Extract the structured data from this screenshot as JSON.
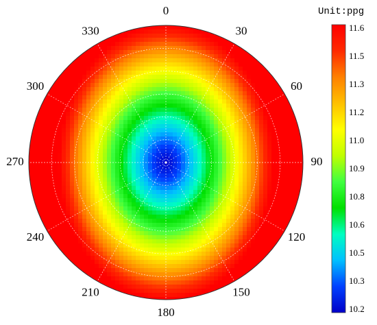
{
  "chart_data": {
    "type": "heatmap",
    "subtype": "polar",
    "unit_label": "Unit:ppg",
    "angular_axis": {
      "direction": "clockwise",
      "zero_location": "top",
      "tick_labels": [
        "0",
        "30",
        "60",
        "90",
        "120",
        "150",
        "180",
        "210",
        "240",
        "270",
        "300",
        "330"
      ],
      "tick_values": [
        0,
        30,
        60,
        90,
        120,
        150,
        180,
        210,
        240,
        270,
        300,
        330
      ]
    },
    "radial_axis": {
      "tick_labels_shown": false,
      "grid": true
    },
    "colorbar": {
      "position": "right",
      "ticks": [
        "11.6",
        "11.5",
        "11.3",
        "11.2",
        "11.0",
        "10.9",
        "10.8",
        "10.6",
        "10.5",
        "10.3",
        "10.2"
      ],
      "min": 10.2,
      "max": 11.6,
      "colors": [
        "#0000c8",
        "#0040ff",
        "#00c0ff",
        "#00ffc0",
        "#00e000",
        "#40ff40",
        "#c0ff00",
        "#ffff00",
        "#ffc000",
        "#ff8000",
        "#ff2a00",
        "#ff0000"
      ]
    },
    "field_model": {
      "center_value": 10.2,
      "edge_value": 11.6,
      "description_note": "value increases radially outward; low-value region is elongated along the 0-180 direction"
    },
    "grid": true
  }
}
